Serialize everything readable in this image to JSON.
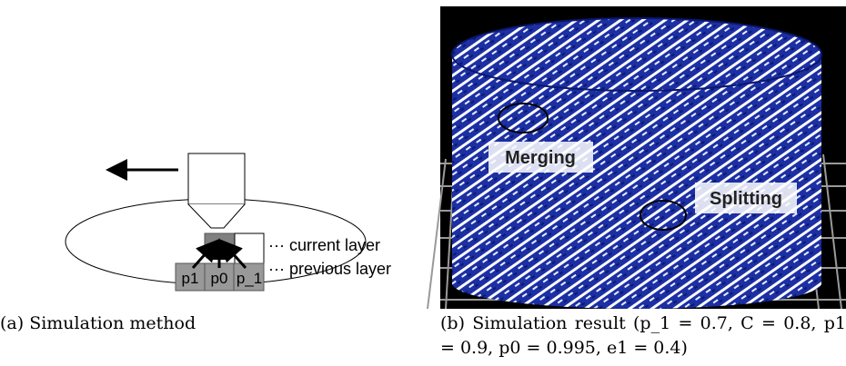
{
  "panel_a": {
    "current_layer": "··· current layer",
    "previous_layer": "··· previous layer",
    "blocks": [
      "p1",
      "p0",
      "p_1"
    ],
    "caption": "(a) Simulation method"
  },
  "panel_b": {
    "annotations": [
      "Merging",
      "Splitting"
    ],
    "caption": "(b) Simulation result (p_1 = 0.7, C = 0.8, p1 = 0.9, p0 = 0.995, e1 = 0.4)"
  }
}
